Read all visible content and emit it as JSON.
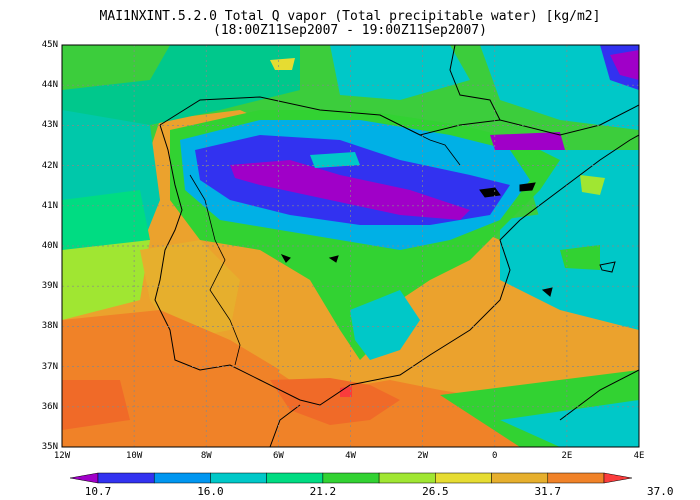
{
  "title": {
    "line1": "MAI1NXINT.5.2.0 Total Q vapor (Total precipitable water) [kg/m2]",
    "line2": "(18:00Z11Sep2007 - 19:00Z11Sep2007)"
  },
  "axes": {
    "lat_labels": [
      "45N",
      "44N",
      "43N",
      "42N",
      "41N",
      "40N",
      "39N",
      "38N",
      "37N",
      "36N",
      "35N"
    ],
    "lon_labels": [
      "12W",
      "10W",
      "8W",
      "6W",
      "4W",
      "2W",
      "0",
      "2E",
      "4E"
    ],
    "lat_range": [
      35,
      45
    ],
    "lon_range": [
      -12,
      4
    ],
    "grid": "dotted"
  },
  "colorbar": {
    "labels": [
      "10.7",
      "16.0",
      "21.2",
      "26.5",
      "31.7",
      "37.0"
    ],
    "colors": [
      "#a000c8",
      "#3232f0",
      "#0096f0",
      "#00c8c8",
      "#00dc82",
      "#32d232",
      "#a0e632",
      "#e6dc32",
      "#e6af2d",
      "#f08228",
      "#fa3c3c"
    ]
  },
  "colors": {
    "land_outline": "#000000",
    "background": "#ffffff"
  }
}
